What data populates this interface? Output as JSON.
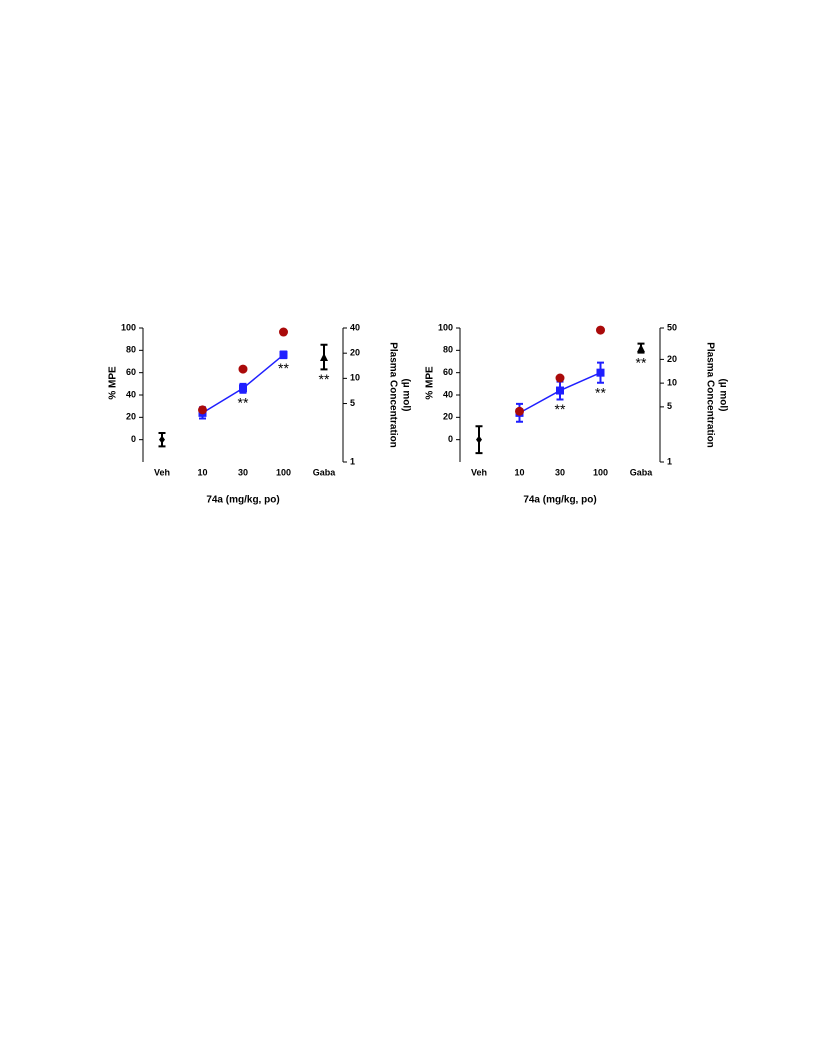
{
  "chart_data": [
    {
      "type": "errorbar",
      "categories": [
        "Veh",
        "10",
        "30",
        "100",
        "Gaba"
      ],
      "xlabel": "74a (mg/kg, po)",
      "ylabel": "% MPE",
      "y2label": [
        "Plasma Concentration",
        "(µ mol)"
      ],
      "ylim": [
        -20,
        100
      ],
      "yticks": [
        0,
        20,
        40,
        60,
        80,
        100
      ],
      "y2lim": [
        1,
        40
      ],
      "y2ticks": [
        1,
        5,
        10,
        20,
        40
      ],
      "y2log": true,
      "series": [
        {
          "color": "#000000",
          "marker": "diamond",
          "line": false,
          "values": [
            0,
            null,
            null,
            null,
            null
          ],
          "errors": [
            6,
            null,
            null,
            null,
            null
          ]
        },
        {
          "color": "#1f1fff",
          "marker": "square",
          "line": true,
          "values": [
            null,
            24,
            46,
            76,
            null
          ],
          "errors": [
            null,
            5,
            4,
            3,
            null
          ]
        },
        {
          "color": "#000000",
          "marker": "triangle",
          "line": false,
          "values": [
            null,
            null,
            null,
            null,
            74
          ],
          "errors": [
            null,
            null,
            null,
            null,
            11
          ]
        },
        {
          "color": "#aa0a0a",
          "marker": "circle",
          "line": false,
          "axis": "y2",
          "values": [
            null,
            4.2,
            12.9,
            35.8,
            null
          ]
        }
      ],
      "annotations": [
        {
          "text": "**",
          "at": "30"
        },
        {
          "text": "**",
          "at": "100"
        },
        {
          "text": "**",
          "at": "Gaba"
        }
      ]
    },
    {
      "type": "errorbar",
      "categories": [
        "Veh",
        "10",
        "30",
        "100",
        "Gaba"
      ],
      "xlabel": "74a (mg/kg, po)",
      "ylabel": "% MPE",
      "y2label": [
        "Plasma Concentration",
        "(µ mol)"
      ],
      "ylim": [
        -20,
        100
      ],
      "yticks": [
        0,
        20,
        40,
        60,
        80,
        100
      ],
      "y2lim": [
        1,
        50
      ],
      "y2ticks": [
        1,
        5,
        10,
        20,
        50
      ],
      "y2log": true,
      "series": [
        {
          "color": "#000000",
          "marker": "diamond",
          "line": false,
          "values": [
            0,
            null,
            null,
            null,
            null
          ],
          "errors": [
            12,
            null,
            null,
            null,
            null
          ]
        },
        {
          "color": "#1f1fff",
          "marker": "square",
          "line": true,
          "values": [
            null,
            24,
            44,
            60,
            null
          ],
          "errors": [
            null,
            8,
            8,
            9,
            null
          ]
        },
        {
          "color": "#000000",
          "marker": "triangle",
          "line": false,
          "values": [
            null,
            null,
            null,
            null,
            82
          ],
          "errors": [
            null,
            null,
            null,
            null,
            4
          ]
        },
        {
          "color": "#aa0a0a",
          "marker": "circle",
          "line": false,
          "axis": "y2",
          "values": [
            null,
            4.4,
            11.6,
            47,
            null
          ]
        }
      ],
      "annotations": [
        {
          "text": "**",
          "at": "30"
        },
        {
          "text": "**",
          "at": "100"
        },
        {
          "text": "**",
          "at": "Gaba"
        }
      ]
    }
  ]
}
